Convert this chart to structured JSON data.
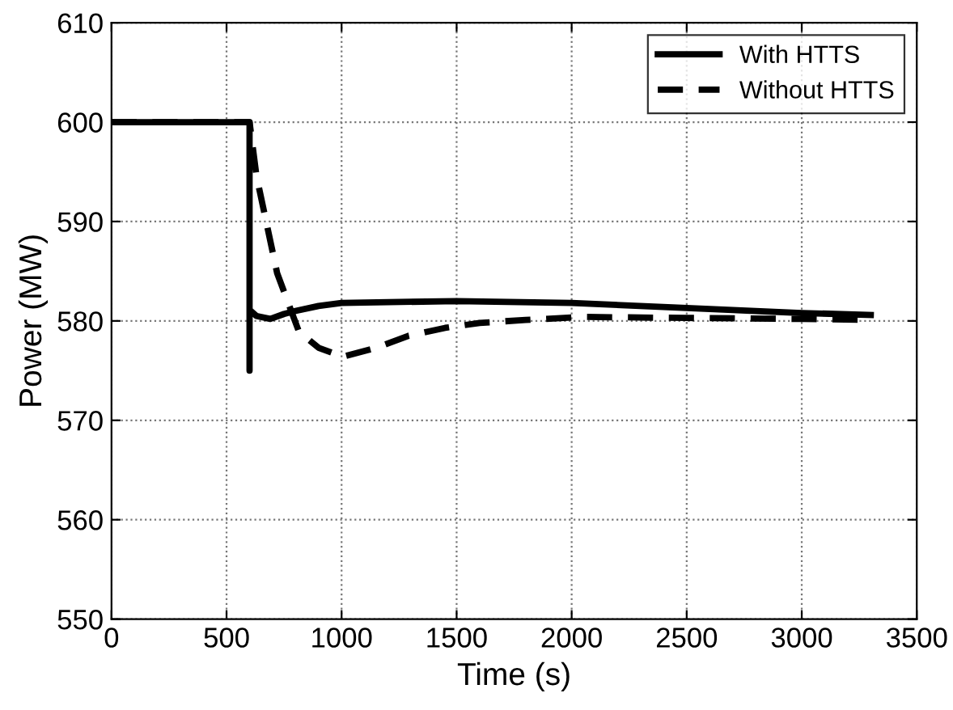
{
  "chart_data": {
    "type": "line",
    "xlabel": "Time (s)",
    "ylabel": "Power (MW)",
    "xlim": [
      0,
      3500
    ],
    "ylim": [
      550,
      610
    ],
    "xticks": [
      0,
      500,
      1000,
      1500,
      2000,
      2500,
      3000,
      3500
    ],
    "yticks": [
      550,
      560,
      570,
      580,
      590,
      600,
      610
    ],
    "grid": true,
    "legend": "top right",
    "series": [
      {
        "name": "With HTTS",
        "color": "#000000",
        "line_style": "solid",
        "x": [
          0,
          600,
          600,
          600,
          605,
          630,
          690,
          750,
          800,
          900,
          1000,
          1500,
          2000,
          2500,
          3000,
          3300
        ],
        "values": [
          600,
          600,
          575,
          581,
          581,
          580.5,
          580.2,
          580.7,
          581,
          581.5,
          581.8,
          582,
          581.8,
          581.3,
          580.8,
          580.6
        ]
      },
      {
        "name": "Without HTTS",
        "color": "#000000",
        "line_style": "dashed",
        "x": [
          0,
          600,
          630,
          720,
          815,
          900,
          1005,
          1150,
          1290,
          1450,
          1600,
          1800,
          2050,
          2500,
          3000,
          3300
        ],
        "values": [
          600,
          600,
          594.6,
          584.8,
          578.9,
          577.3,
          576.4,
          577.3,
          578.5,
          579.3,
          579.8,
          580.1,
          580.4,
          580.3,
          580.2,
          580.1
        ]
      }
    ]
  }
}
